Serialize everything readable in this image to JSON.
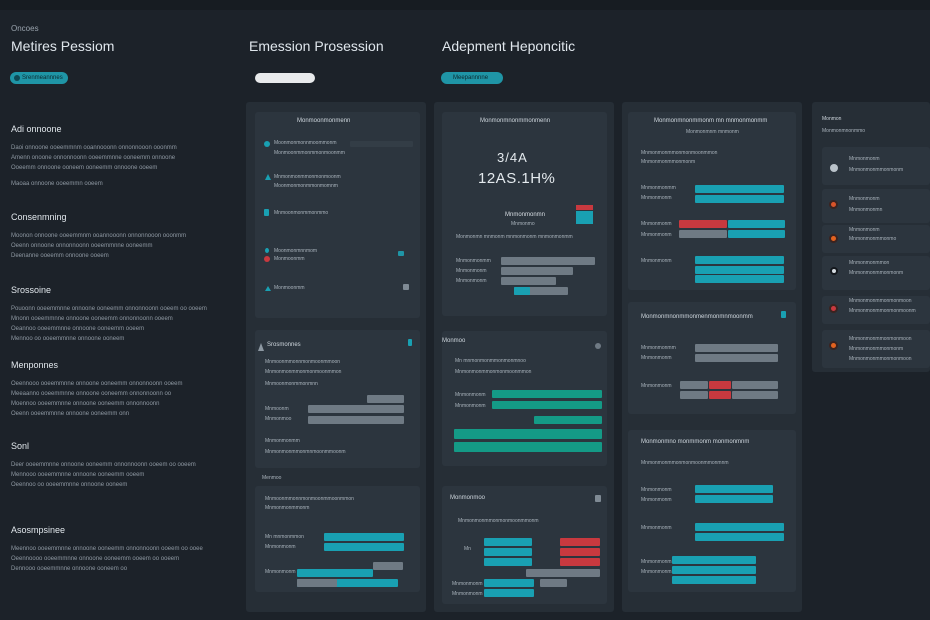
{
  "header": {
    "app_label": "Oncoes",
    "titles": [
      "Metires Pessiom",
      "Emession Prosession",
      "Adepment Heponcitic"
    ],
    "pills": [
      "Srenmeannnes",
      "",
      "Meepannnne"
    ]
  },
  "left": {
    "sections": [
      {
        "title": "Adi onnoone",
        "lines": [
          "Daoi onnoone ooeemmnm ooannooonn onnonnooon ooonmm",
          "Amenn onoone onnonnoonn ooeemmnne ooneemm onnoone",
          "Ooeemm onnoone ooneem ooneemm onnoone ooeem",
          "",
          "Maoaa onnoone ooeemmn ooeem"
        ]
      },
      {
        "title": "Consenmning",
        "lines": [
          "Moonon onnoone ooeemmnm ooannooonn onnonnooon ooonmm",
          "Oeenn onnoone onnonnoonn ooeemmnne ooneemm",
          "Deenanne ooeemm onnoone ooeem"
        ]
      },
      {
        "title": "Srossoine",
        "lines": [
          "Pouoonn ooeemmnne onnoone ooneemm onnonnoonn ooeem oo ooeem",
          "Mnonn ooeemmnne onnoone ooneemm onnonnoonn ooeem",
          "Oeannoo ooeemmnne onnoone ooneemm ooeem",
          "Mennoo oo ooeemmnne onnoone ooneem"
        ]
      },
      {
        "title": "Menponnes",
        "lines": [
          "Oeennooo ooeemmnne onnoone ooneemm onnonnoonn ooeem",
          "Meeaanno ooeemmnne onnoone ooneemm onnonnoonn oo",
          "Moennoo ooeemmnne onnoone ooneemm onnonnoonn",
          "Oeenn ooeemmnne onnoone ooneemm onn"
        ]
      },
      {
        "title": "Sonl",
        "lines": [
          "Deer ooeemmnne onnoone ooneemm onnonnoonn ooeem oo ooeem",
          "Mennooo ooeemmnne onnoone ooneemm ooeem",
          "Oeennoo oo ooeemmnne onnoone ooneem"
        ]
      },
      {
        "title": "Asosmpsinee",
        "lines": [
          "Meennoo ooeemmnne onnoone ooneemm onnonnoonn ooeem oo ooee",
          "Oeennoooo ooeemmnne onnoone ooneemm ooeem oo ooeem",
          "Dennooo ooeemmnne onnoone ooneem oo"
        ]
      }
    ]
  },
  "col1": {
    "card1": {
      "title": "Monmoonmonmenn",
      "items": [
        "Moonmonmonnmoommonm",
        "Monmoonmmonmmonmoonmm",
        "Mnmonmonmmonmonmoonm",
        "Moonmonmonmmonmomnm",
        "Mnmoonmonmmonmmo",
        "Moonmonmnnmom",
        "Monmoonmm"
      ]
    },
    "card2": {
      "title": "Srosmonnes",
      "lines": [
        "Mnmoonmmonnmonmoonmmoon",
        "Mnmonmonmmonmonmoonmmon",
        "Mnmoonmonmmonmnn"
      ],
      "bar_labels": [
        "Mnmoonm",
        "Mnmonmoo"
      ],
      "more": [
        "Mnmonmonmm",
        "Mnmonmonmmonmnmoonmmoonm"
      ]
    },
    "card3": {
      "title": "Menmoo",
      "lines": [
        "Mnmoonmmonnmonmoonmmoonmmon",
        "Mnmonmonmmonm"
      ],
      "bar_labels": [
        "Mn mnmonmmon",
        "Mnmonmonm",
        "Mnmonmonm"
      ]
    }
  },
  "col2": {
    "card1": {
      "title": "Monmonmnonmmonmenn",
      "value1": "3/4A",
      "value2": "12AS.1H%",
      "label": "Mnmonmonmn",
      "sublabel": "Mnmonmo",
      "row_label": "Monmonmn mnmonm mnmonmonm mnmonmonmm",
      "bar_labels": [
        "Mnmonmonmm",
        "Mnmonmonm",
        "Mnmonmonm"
      ]
    },
    "card2": {
      "title": "Monmoo",
      "lines": [
        "Mn mnmonmonmmonmonmnoo",
        "Mnmonmonmmonmonmoonmmon"
      ],
      "bar_labels": [
        "Mnmonmonm",
        "Mnmonmonm"
      ]
    },
    "card3": {
      "title": "Monmonmoo",
      "lines": [
        "Mnmonmonmmonmonmoonmmonm"
      ],
      "bar_labels": [
        "Mn",
        "Mnmonmonm",
        "Mnmonmonm"
      ]
    }
  },
  "col3": {
    "card1": {
      "title": "Monmonmnonmmonm mn mnmonmonmm",
      "subtitle": "Monmonmnm mnmonm",
      "lines": [
        "Mnmonmonmmonmonmoonmmon",
        "Mnmonmonmmonmonm"
      ],
      "bar_labels": [
        "Mnmonmonmm",
        "Mnmonmonm",
        "Mnmonmonm",
        "Mnmonmonm",
        "Mnmonmonm"
      ]
    },
    "card2": {
      "title": "Monmonmnonmmonmenmonmnmoonmm",
      "bar_labels": [
        "Mnmonmonmm",
        "Mnmonmonm",
        "Mnmonmonm"
      ]
    },
    "card3": {
      "title": "Monmonmno monmmonm monmonmnm",
      "lines": [
        "Mnmonmonmmonmonmoonmmonmnm"
      ],
      "bar_labels": [
        "Mnmonmonm",
        "Mnmonmonm",
        "Mnmonmonm",
        "Mnmonmonm",
        "Mnmonmonm"
      ]
    }
  },
  "col4": {
    "title": "Monmon",
    "subtitle": "Monmonmnonmmo",
    "items": [
      {
        "a": "Mnmonmonm",
        "b": "Mnmonmonmmonmonm"
      },
      {
        "a": "Mnmonmonm",
        "b": "Mnmonmonmn"
      },
      {
        "a": "Mnmonmonm",
        "b": "Mnmonmonmmonmo"
      },
      {
        "a": "Mnmonmonmmon",
        "b": "Mnmonmonmmonmonm"
      },
      {
        "a": "Mnmonmonmmonmonmoon",
        "b": "Mnmonmonmmonmonmoonm"
      },
      {
        "a": "Mnmonmonmmonmonmoon",
        "b": "Mnmonmonmmonmonm"
      }
    ]
  }
}
